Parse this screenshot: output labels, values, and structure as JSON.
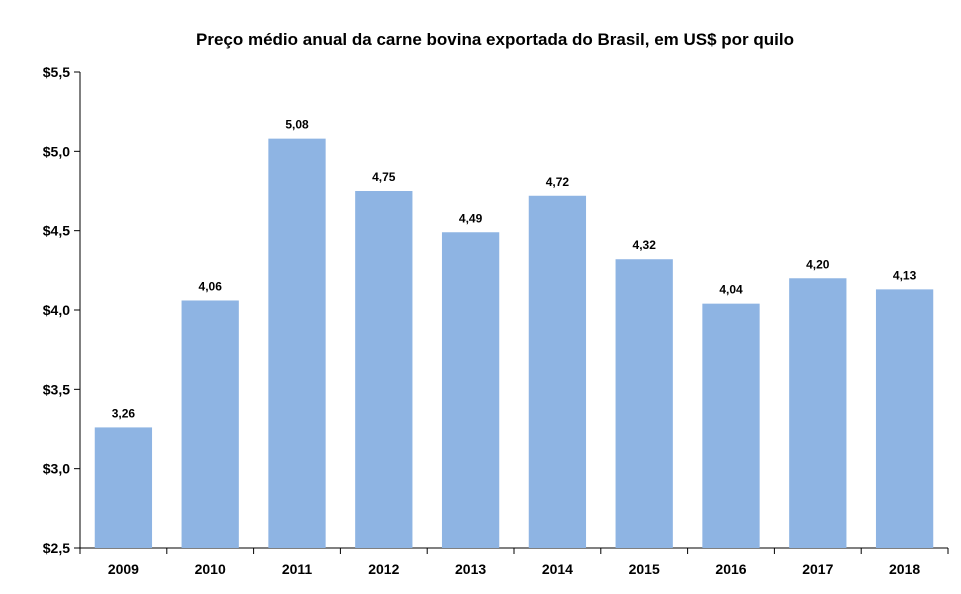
{
  "chart_data": {
    "type": "bar",
    "title": "Preço médio anual da carne bovina exportada do Brasil, em US$ por quilo",
    "xlabel": "",
    "ylabel": "",
    "categories": [
      "2009",
      "2010",
      "2011",
      "2012",
      "2013",
      "2014",
      "2015",
      "2016",
      "2017",
      "2018"
    ],
    "values": [
      3.26,
      4.06,
      5.08,
      4.75,
      4.49,
      4.72,
      4.32,
      4.04,
      4.2,
      4.13
    ],
    "value_labels": [
      "3,26",
      "4,06",
      "5,08",
      "4,75",
      "4,49",
      "4,72",
      "4,32",
      "4,04",
      "4,20",
      "4,13"
    ],
    "ylim": [
      2.5,
      5.5
    ],
    "yticks": [
      2.5,
      3.0,
      3.5,
      4.0,
      4.5,
      5.0,
      5.5
    ],
    "ytick_labels": [
      "$2,5",
      "$3,0",
      "$3,5",
      "$4,0",
      "$4,5",
      "$5,0",
      "$5,5"
    ],
    "grid": false,
    "legend": "none",
    "bar_color": "#8EB4E3"
  }
}
